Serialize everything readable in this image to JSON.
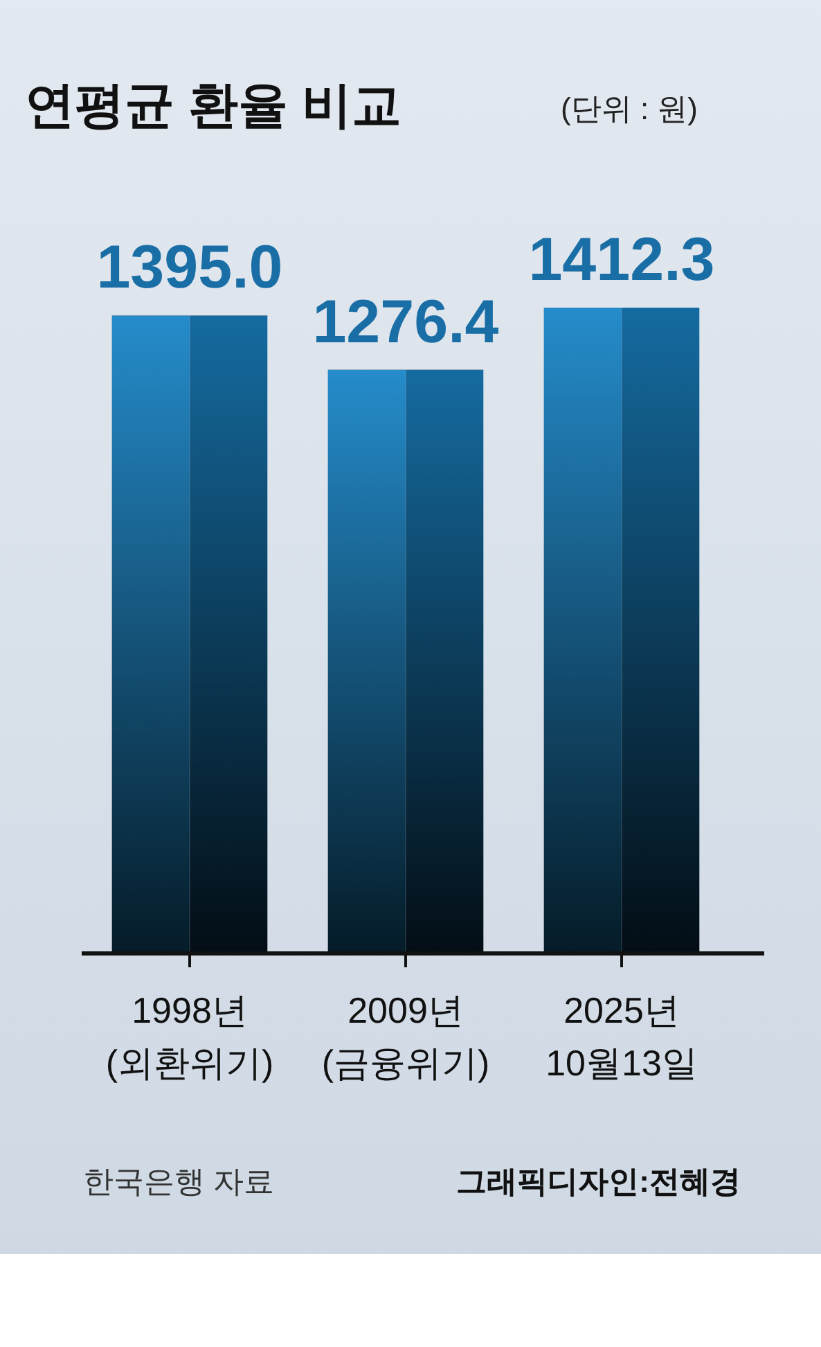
{
  "chart_data": {
    "type": "bar",
    "title": "연평균 환율 비교",
    "subtitle": "(단위 : 원)",
    "categories": [
      "1998년\n(외환위기)",
      "2009년\n(금융위기)",
      "2025년\n10월13일"
    ],
    "values": [
      1395.0,
      1276.4,
      1412.3
    ],
    "color": "#1a86c8",
    "value_labels": [
      "1395.0",
      "1276.4",
      "1412.3"
    ],
    "annotations": [
      "한국은행 자료",
      "그래픽디자인:전혜경"
    ]
  }
}
